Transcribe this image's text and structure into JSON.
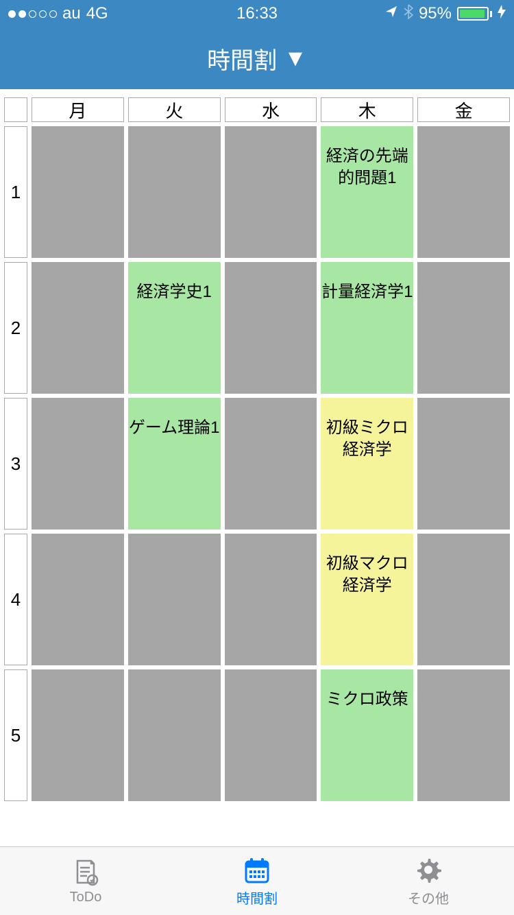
{
  "status": {
    "carrier": "au",
    "network": "4G",
    "time": "16:33",
    "battery_percent": "95%",
    "battery_fill_pct": 95,
    "signal_strength": 2
  },
  "nav": {
    "title": "時間割"
  },
  "timetable": {
    "columns": [
      "月",
      "火",
      "水",
      "木",
      "金"
    ],
    "periods": [
      "1",
      "2",
      "3",
      "4",
      "5"
    ],
    "colors": {
      "empty": "#a6a6a6",
      "green": "#a8e6a3",
      "yellow": "#f6f49a",
      "border": "#aaaaaa",
      "background": "#ffffff"
    },
    "cells": [
      [
        {
          "label": "",
          "color": "empty"
        },
        {
          "label": "",
          "color": "empty"
        },
        {
          "label": "",
          "color": "empty"
        },
        {
          "label": "経済の先端的問題1",
          "color": "green"
        },
        {
          "label": "",
          "color": "empty"
        }
      ],
      [
        {
          "label": "",
          "color": "empty"
        },
        {
          "label": "経済学史1",
          "color": "green"
        },
        {
          "label": "",
          "color": "empty"
        },
        {
          "label": "計量経済学1",
          "color": "green"
        },
        {
          "label": "",
          "color": "empty"
        }
      ],
      [
        {
          "label": "",
          "color": "empty"
        },
        {
          "label": "ゲーム理論1",
          "color": "green"
        },
        {
          "label": "",
          "color": "empty"
        },
        {
          "label": "初級ミクロ経済学",
          "color": "yellow"
        },
        {
          "label": "",
          "color": "empty"
        }
      ],
      [
        {
          "label": "",
          "color": "empty"
        },
        {
          "label": "",
          "color": "empty"
        },
        {
          "label": "",
          "color": "empty"
        },
        {
          "label": "初級マクロ経済学",
          "color": "yellow"
        },
        {
          "label": "",
          "color": "empty"
        }
      ],
      [
        {
          "label": "",
          "color": "empty"
        },
        {
          "label": "",
          "color": "empty"
        },
        {
          "label": "",
          "color": "empty"
        },
        {
          "label": "ミクロ政策",
          "color": "green"
        },
        {
          "label": "",
          "color": "empty"
        }
      ]
    ]
  },
  "tabs": {
    "items": [
      {
        "label": "ToDo",
        "active": false
      },
      {
        "label": "時間割",
        "active": true
      },
      {
        "label": "その他",
        "active": false
      }
    ]
  }
}
